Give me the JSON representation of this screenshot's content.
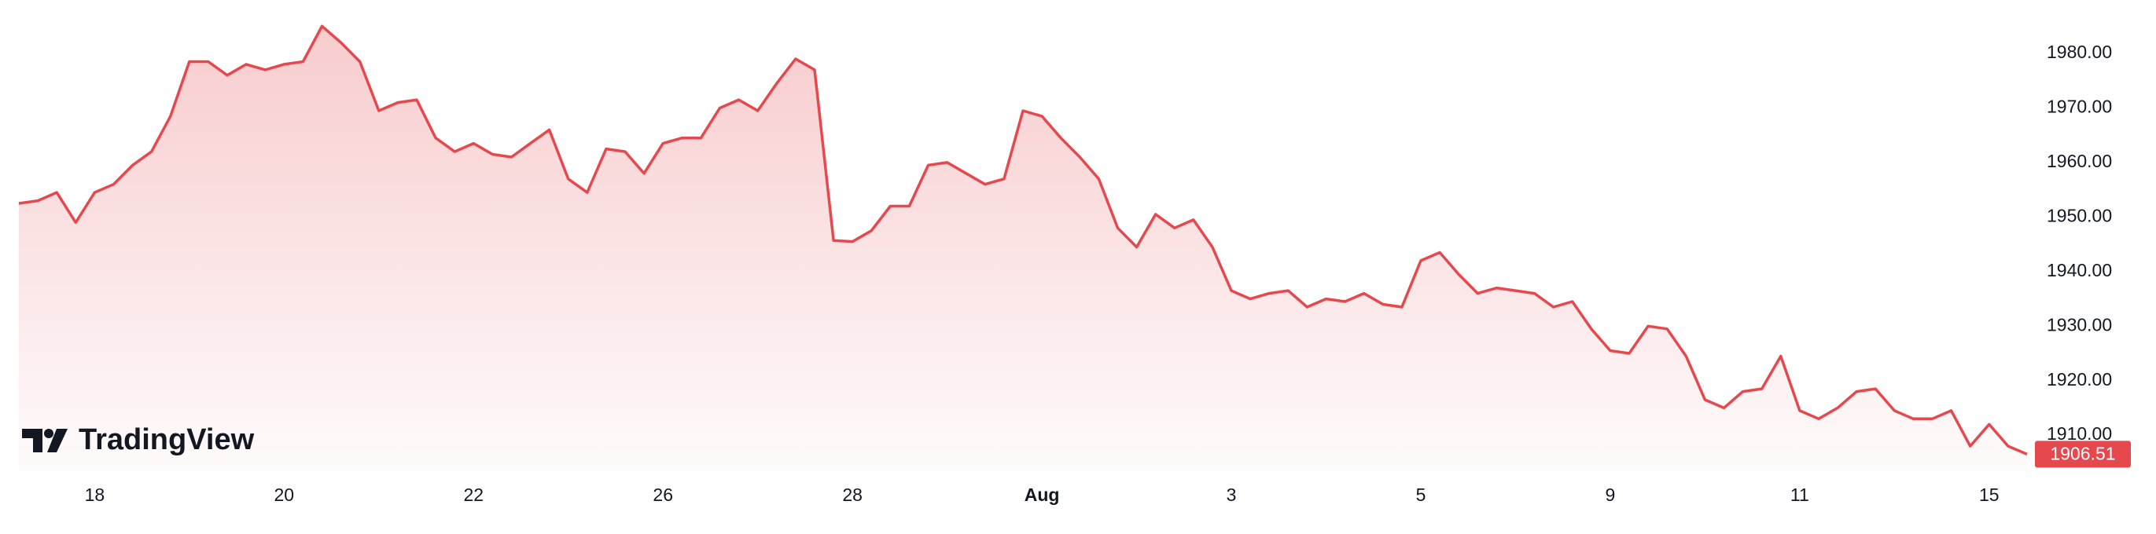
{
  "logo_text": "TradingView",
  "chart_data": {
    "type": "line",
    "color": "#e5484d",
    "categories": [
      null,
      null,
      null,
      null,
      "18",
      null,
      null,
      null,
      null,
      null,
      null,
      null,
      null,
      null,
      "20",
      null,
      null,
      null,
      null,
      null,
      null,
      null,
      null,
      null,
      "22",
      null,
      null,
      null,
      null,
      null,
      null,
      null,
      null,
      null,
      "26",
      null,
      null,
      null,
      null,
      null,
      null,
      null,
      null,
      null,
      "28",
      null,
      null,
      null,
      null,
      null,
      null,
      null,
      null,
      null,
      "Aug",
      null,
      null,
      null,
      null,
      null,
      null,
      null,
      null,
      null,
      "3",
      null,
      null,
      null,
      null,
      null,
      null,
      null,
      null,
      null,
      "5",
      null,
      null,
      null,
      null,
      null,
      null,
      null,
      null,
      null,
      "9",
      null,
      null,
      null,
      null,
      null,
      null,
      null,
      null,
      null,
      "11",
      null,
      null,
      null,
      null,
      null,
      null,
      null,
      null,
      null,
      "15",
      null,
      null
    ],
    "values": [
      1952.5,
      1953,
      1954.5,
      1949,
      1954.5,
      1956,
      1959.5,
      1962,
      1968.5,
      1978.5,
      1978.5,
      1976,
      1978,
      1977,
      1978,
      1978.5,
      1985,
      1982,
      1978.5,
      1969.5,
      1971,
      1971.5,
      1964.5,
      1962,
      1963.5,
      1961.5,
      1961,
      1963.5,
      1966,
      1957,
      1954.5,
      1962.5,
      1962,
      1958,
      1963.5,
      1964.5,
      1964.5,
      1970,
      1971.5,
      1969.5,
      1974.5,
      1979,
      1977,
      1945.7,
      1945.5,
      1947.5,
      1952,
      1952,
      1959.5,
      1960,
      1958,
      1956,
      1957,
      1969.5,
      1968.5,
      1964.5,
      1961,
      1957,
      1948,
      1944.5,
      1950.5,
      1948,
      1949.5,
      1944.5,
      1936.5,
      1935,
      1936,
      1936.5,
      1933.5,
      1935,
      1934.5,
      1936,
      1934,
      1933.5,
      1942,
      1943.5,
      1939.5,
      1936,
      1937,
      1936.5,
      1936,
      1933.5,
      1934.5,
      1929.5,
      1925.5,
      1925,
      1930,
      1929.5,
      1924.5,
      1916.5,
      1915,
      1918,
      1918.5,
      1924.5,
      1914.5,
      1913,
      1915,
      1918,
      1918.5,
      1914.5,
      1913,
      1913,
      1914.5,
      1908,
      1912,
      1908,
      1906.51
    ],
    "ylim": [
      1903.4,
      1989.8
    ],
    "yticks": [
      {
        "value": 1910,
        "label": "1910.00"
      },
      {
        "value": 1920,
        "label": "1920.00"
      },
      {
        "value": 1930,
        "label": "1930.00"
      },
      {
        "value": 1940,
        "label": "1940.00"
      },
      {
        "value": 1950,
        "label": "1950.00"
      },
      {
        "value": 1960,
        "label": "1960.00"
      },
      {
        "value": 1970,
        "label": "1970.00"
      },
      {
        "value": 1980,
        "label": "1980.00"
      }
    ],
    "grid": false
  }
}
